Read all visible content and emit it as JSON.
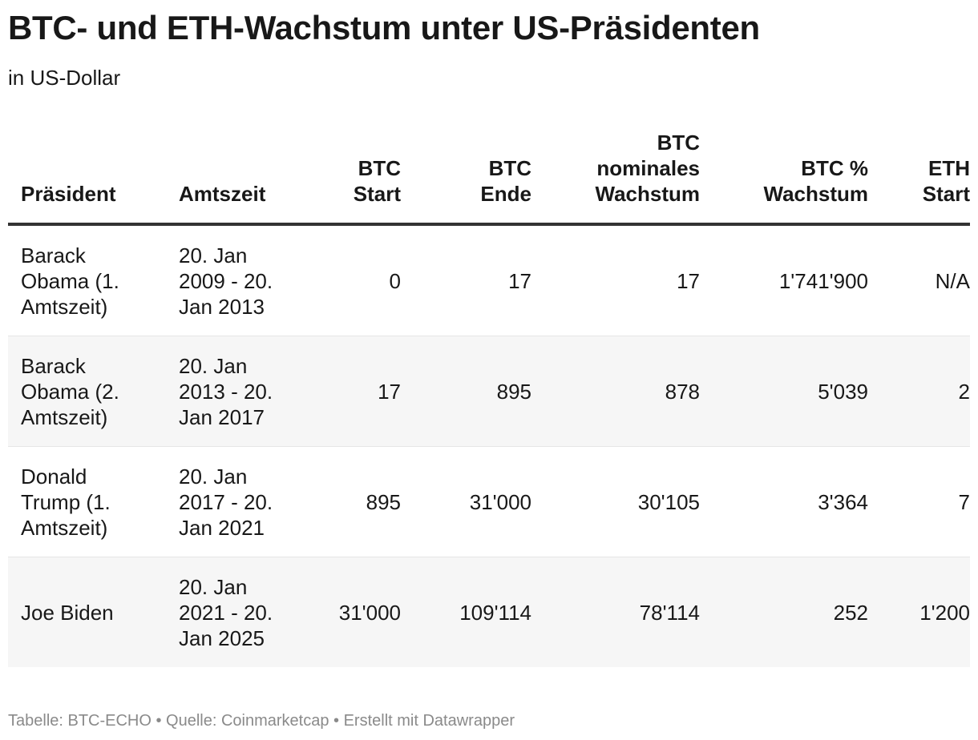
{
  "title": "BTC- und ETH-Wachstum unter US-Präsidenten",
  "subtitle": "in US-Dollar",
  "columns": [
    {
      "line1": "",
      "line2": "",
      "line3": "Präsident"
    },
    {
      "line1": "",
      "line2": "",
      "line3": "Amtszeit"
    },
    {
      "line1": "",
      "line2": "BTC",
      "line3": "Start"
    },
    {
      "line1": "",
      "line2": "BTC",
      "line3": "Ende"
    },
    {
      "line1": "BTC",
      "line2": "nominales",
      "line3": "Wachstum"
    },
    {
      "line1": "",
      "line2": "BTC %",
      "line3": "Wachstum"
    },
    {
      "line1": "",
      "line2": "ETH",
      "line3": "Start"
    }
  ],
  "rows": [
    {
      "president": [
        "Barack",
        "Obama (1.",
        "Amtszeit)"
      ],
      "term": [
        "20. Jan",
        "2009 - 20.",
        "Jan 2013"
      ],
      "btc_start": "0",
      "btc_end": "17",
      "btc_nominal": "17",
      "btc_pct": "1'741'900",
      "eth_start": "N/A"
    },
    {
      "president": [
        "Barack",
        "Obama (2.",
        "Amtszeit)"
      ],
      "term": [
        "20. Jan",
        "2013 - 20.",
        "Jan 2017"
      ],
      "btc_start": "17",
      "btc_end": "895",
      "btc_nominal": "878",
      "btc_pct": "5'039",
      "eth_start": "2"
    },
    {
      "president": [
        "Donald",
        "Trump (1.",
        "Amtszeit)"
      ],
      "term": [
        "20. Jan",
        "2017 - 20.",
        "Jan 2021"
      ],
      "btc_start": "895",
      "btc_end": "31'000",
      "btc_nominal": "30'105",
      "btc_pct": "3'364",
      "eth_start": "7"
    },
    {
      "president": [
        "Joe Biden"
      ],
      "term": [
        "20. Jan",
        "2021 - 20.",
        "Jan 2025"
      ],
      "btc_start": "31'000",
      "btc_end": "109'114",
      "btc_nominal": "78'114",
      "btc_pct": "252",
      "eth_start": "1'200"
    }
  ],
  "footer": "Tabelle: BTC-ECHO • Quelle: Coinmarketcap • Erstellt mit Datawrapper"
}
